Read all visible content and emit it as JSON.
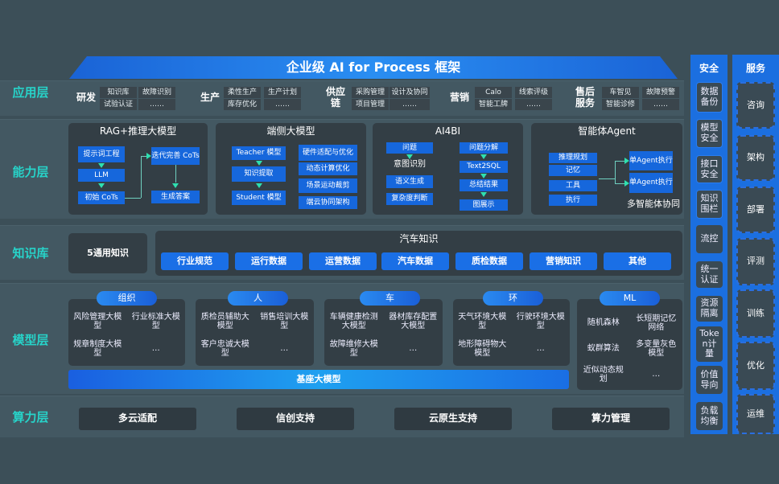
{
  "title": "企业级 AI for Process 框架",
  "layers": {
    "app": "应用层",
    "capability": "能力层",
    "knowledge": "知识库",
    "model": "模型层",
    "compute": "算力层"
  },
  "app": [
    {
      "label": "研发",
      "items": [
        "知识库",
        "试验认证",
        "故障识别",
        "……"
      ]
    },
    {
      "label": "生产",
      "items": [
        "柔性生产",
        "库存优化",
        "生产计划",
        "……"
      ]
    },
    {
      "label": "供应链",
      "items": [
        "采购管理",
        "项目管理",
        "设计及协同",
        "……"
      ]
    },
    {
      "label": "营销",
      "items": [
        "Calo",
        "智能工牌",
        "线索评级",
        "……"
      ]
    },
    {
      "label": "售后服务",
      "items": [
        "车智见",
        "智能诊修",
        "故障预警",
        "……"
      ]
    }
  ],
  "capability": [
    {
      "title": "RAG+推理大模型",
      "boxes": [
        "提示词工程",
        "LLM",
        "初始 CoTs",
        "迭代完善 CoTs",
        "生成答案"
      ]
    },
    {
      "title": "端侧大模型",
      "boxes": [
        "Teacher 模型",
        "知识提取",
        "Student 模型",
        "硬件适配与优化",
        "动态计算优化",
        "场景运动裁剪",
        "端云协同架构"
      ]
    },
    {
      "title": "AI4BI",
      "boxes": [
        "问题",
        "意图识别",
        "语义生成",
        "复杂度判断",
        "问题分解",
        "Text2SQL",
        "总结结果",
        "图展示"
      ]
    },
    {
      "title": "智能体Agent",
      "boxes": [
        "推理规划",
        "记忆",
        "工具",
        "执行",
        "单Agent执行",
        "单Agent执行"
      ],
      "footer": "多智能体协同"
    }
  ],
  "knowledge": {
    "general": "5通用知识",
    "auto_title": "汽车知识",
    "items": [
      "行业规范",
      "运行数据",
      "运营数据",
      "汽车数据",
      "质检数据",
      "营销知识",
      "其他"
    ]
  },
  "models": [
    {
      "title": "组织",
      "items": [
        "风险管理大模型",
        "行业标准大模型",
        "规章制度大模型",
        "…"
      ]
    },
    {
      "title": "人",
      "items": [
        "质检员辅助大模型",
        "销售培训大模型",
        "客户忠诚大模型",
        "…"
      ]
    },
    {
      "title": "车",
      "items": [
        "车辆健康检测大模型",
        "器材库存配置大模型",
        "故障维修大模型",
        "…"
      ]
    },
    {
      "title": "环",
      "items": [
        "天气环境大模型",
        "行驶环境大模型",
        "地形障碍物大模型",
        "…"
      ]
    },
    {
      "title": "ML",
      "items": [
        "随机森林",
        "长短期记忆网络",
        "蚁群算法",
        "多变量灰色模型",
        "近似动态规划",
        "…"
      ]
    }
  ],
  "foundation": "基座大模型",
  "compute": [
    "多云适配",
    "信创支持",
    "云原生支持",
    "算力管理"
  ],
  "security": {
    "title": "安全",
    "items": [
      "数据备份",
      "模型安全",
      "接口安全",
      "知识围栏",
      "流控",
      "统一认证",
      "资源隔离",
      "Token计量",
      "价值导向",
      "负载均衡"
    ]
  },
  "service": {
    "title": "服务",
    "items": [
      "咨询",
      "架构",
      "部署",
      "评测",
      "训练",
      "优化",
      "运维"
    ]
  },
  "colors": {
    "background": "#3c4f58",
    "accent_blue": "#1667dc",
    "layer_label": "#27d3c9",
    "arrow": "#2ee0b0"
  }
}
